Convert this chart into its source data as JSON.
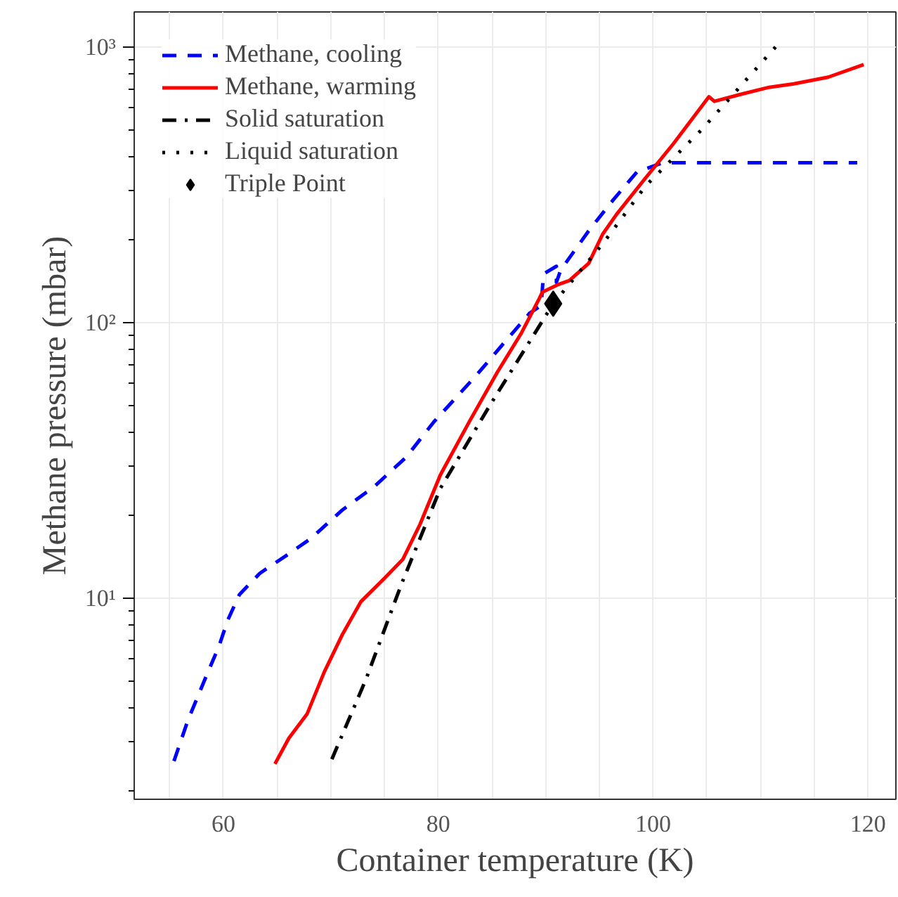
{
  "chart_data": {
    "type": "line",
    "xlabel": "Container temperature (K)",
    "ylabel": "Methane pressure (mbar)",
    "log": "y",
    "grid": true,
    "legend": "top left",
    "xlim": [
      51.7,
      122.6
    ],
    "ylim": [
      1.86,
      1340
    ],
    "xticks": [
      {
        "value": 55,
        "label": null
      },
      60,
      {
        "value": 65,
        "label": null
      },
      {
        "value": 70,
        "label": null
      },
      {
        "value": 75,
        "label": null
      },
      80,
      {
        "value": 85,
        "label": null
      },
      {
        "value": 90,
        "label": null
      },
      {
        "value": 95,
        "label": null
      },
      100,
      {
        "value": 105,
        "label": null
      },
      {
        "value": 110,
        "label": null
      },
      {
        "value": 115,
        "label": null
      },
      120
    ],
    "yticks": [
      {
        "value": 2,
        "label": null
      },
      {
        "value": 3,
        "label": null
      },
      {
        "value": 4,
        "label": null
      },
      {
        "value": 5,
        "label": null
      },
      {
        "value": 6,
        "label": null
      },
      {
        "value": 7,
        "label": null
      },
      {
        "value": 8,
        "label": null
      },
      {
        "value": 9,
        "label": null
      },
      {
        "value": 10,
        "label": "10¹"
      },
      {
        "value": 20,
        "label": null
      },
      {
        "value": 30,
        "label": null
      },
      {
        "value": 40,
        "label": null
      },
      {
        "value": 50,
        "label": null
      },
      {
        "value": 60,
        "label": null
      },
      {
        "value": 70,
        "label": null
      },
      {
        "value": 80,
        "label": null
      },
      {
        "value": 90,
        "label": null
      },
      {
        "value": 100,
        "label": "10²"
      },
      {
        "value": 200,
        "label": null
      },
      {
        "value": 300,
        "label": null
      },
      {
        "value": 400,
        "label": null
      },
      {
        "value": 500,
        "label": null
      },
      {
        "value": 600,
        "label": null
      },
      {
        "value": 700,
        "label": null
      },
      {
        "value": 800,
        "label": null
      },
      {
        "value": 900,
        "label": null
      },
      {
        "value": 1000,
        "label": "10³"
      }
    ],
    "series": [
      {
        "name": "Methane, cooling",
        "line_style": "dashed",
        "color": "#0000ff",
        "x": [
          55.4,
          56.7,
          58.4,
          59.6,
          60.4,
          61.5,
          63.4,
          65.9,
          68.1,
          71.1,
          74.1,
          77.0,
          79.6,
          83.5,
          86.2,
          88.5,
          89.4,
          89.6,
          89.8,
          91.0,
          91.0,
          91.4,
          94.0,
          96.3,
          98.5,
          100.9,
          119.0
        ],
        "values": [
          2.56,
          3.6,
          5.2,
          6.7,
          8.3,
          10.3,
          12.3,
          14.3,
          16.4,
          20.9,
          25.5,
          32.4,
          43.6,
          64,
          85,
          108,
          114,
          118,
          150,
          160,
          140,
          155,
          215,
          279,
          352,
          380,
          380
        ]
      },
      {
        "name": "Methane, warming",
        "line_style": "solid",
        "color": "#ff0000",
        "x": [
          64.8,
          66.1,
          67.8,
          69.4,
          71.1,
          72.8,
          75.0,
          76.7,
          78.3,
          80.2,
          82.9,
          85.5,
          87.7,
          89.4,
          89.7,
          91.1,
          92.2,
          94.0,
          95.3,
          96.6,
          99.2,
          101.9,
          105.2,
          105.7,
          108.2,
          110.8,
          113.1,
          116.3,
          119.6
        ],
        "values": [
          2.5,
          3.1,
          3.8,
          5.4,
          7.4,
          9.7,
          11.8,
          13.8,
          18.5,
          28,
          43.7,
          66,
          91,
          122,
          129,
          137,
          142,
          164,
          209,
          247,
          331,
          446,
          660,
          635,
          674,
          714,
          735,
          777,
          863
        ]
      },
      {
        "name": "Solid saturation",
        "line_style": "dashdot",
        "color": "#000000",
        "x": [
          70.1,
          73.3,
          76.6,
          80.2,
          84.8,
          90.7
        ],
        "values": [
          2.6,
          5.1,
          11.3,
          25,
          50,
          117
        ]
      },
      {
        "name": "Liquid saturation",
        "line_style": "dotted",
        "color": "#000000",
        "x": [
          90.7,
          95.4,
          99.3,
          104.5,
          111.4
        ],
        "values": [
          117,
          195,
          313,
          500,
          1000
        ]
      },
      {
        "name": "Triple Point",
        "type": "scatter",
        "marker": "diamond",
        "color": "#000000",
        "x": [
          90.7
        ],
        "values": [
          117
        ]
      }
    ]
  }
}
